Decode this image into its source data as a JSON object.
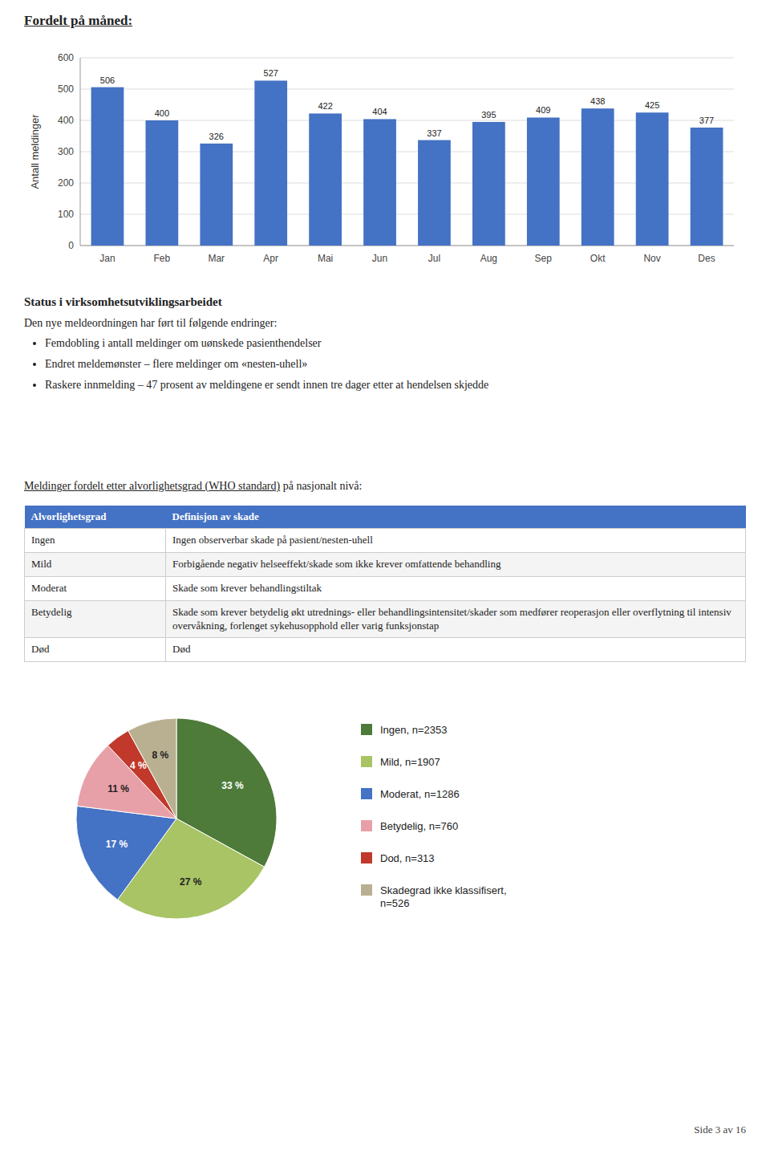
{
  "chart_data": [
    {
      "type": "bar",
      "title": "Fordelt på måned:",
      "y_label": "Antall meldinger",
      "categories": [
        "Jan",
        "Feb",
        "Mar",
        "Apr",
        "Mai",
        "Jun",
        "Jul",
        "Aug",
        "Sep",
        "Okt",
        "Nov",
        "Des"
      ],
      "values": [
        506,
        400,
        326,
        527,
        422,
        404,
        337,
        395,
        409,
        438,
        425,
        377
      ],
      "color": "#4472C4",
      "ylim": [
        0,
        600
      ],
      "yticks": [
        0,
        100,
        200,
        300,
        400,
        500,
        600
      ],
      "grid": true,
      "data_labels": true
    },
    {
      "type": "pie",
      "categories": [
        "Ingen, n=2353",
        "Mild, n=1907",
        "Moderat, n=1286",
        "Betydelig, n=760",
        "Dod, n=313",
        "Skadegrad ikke klassifisert,\nn=526"
      ],
      "values": [
        33,
        27,
        17,
        11,
        4,
        8
      ],
      "value_labels": [
        "33 %",
        "27 %",
        "17 %",
        "11 %",
        "4 %",
        "8 %"
      ],
      "colors": [
        "#4e7a3a",
        "#a8c465",
        "#4472C4",
        "#e8a0a8",
        "#c0392b",
        "#b8b090"
      ],
      "legend": "right",
      "data_labels": true
    }
  ],
  "page": {
    "status_title": "Status i virksomhetsutviklingsarbeidet",
    "status_intro": "Den nye meldeordningen har ført til følgende endringer:",
    "bullet_points": [
      "Femdobling i antall meldinger om uønskede pasienthendelser",
      "Endret meldemønster – flere meldinger om «nesten-uhell»",
      "Raskere innmelding – 47 prosent av meldingene er sendt innen tre dager etter at hendelsen skjedde"
    ],
    "table_heading_underline": "Meldinger fordelt etter alvorlighetsgrad (WHO standard)",
    "table_heading_rest": " på nasjonalt nivå:",
    "table": {
      "header": [
        "Alvorlighetsgrad",
        "Definisjon av skade"
      ],
      "rows": [
        [
          "Ingen",
          "Ingen observerbar skade på pasient/nesten-uhell"
        ],
        [
          "Mild",
          "Forbigående negativ helseeffekt/skade som ikke krever omfattende behandling"
        ],
        [
          "Moderat",
          "Skade som krever behandlingstiltak"
        ],
        [
          "Betydelig",
          "Skade som krever betydelig økt utrednings- eller behandlingsintensitet/skader som medfører reoperasjon eller overflytning til intensiv overvåkning, forlenget sykehusopphold eller varig funksjonstap"
        ],
        [
          "Død",
          "Død"
        ]
      ]
    },
    "footer": "Side 3 av 16"
  }
}
